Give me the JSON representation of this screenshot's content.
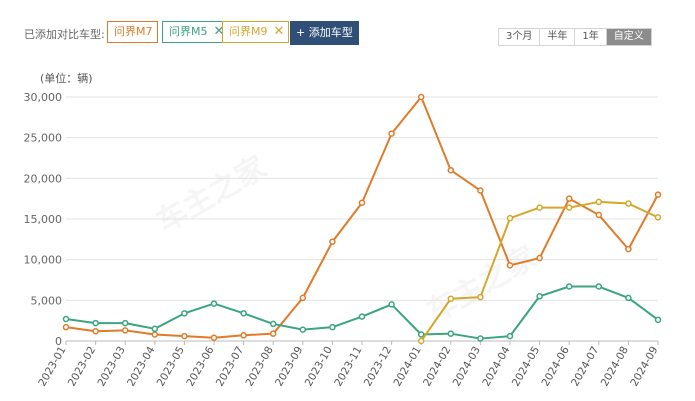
{
  "toolbar": {
    "added_label": "已添加对比车型:",
    "add_button": "+ 添加车型",
    "models": [
      {
        "label": "问界M7",
        "color": "#e07b2a",
        "remove_icon": "close-icon"
      },
      {
        "label": "问界M5",
        "color": "#3aa57f",
        "remove_icon": "close-icon"
      },
      {
        "label": "问界M9",
        "color": "#d4a72c",
        "remove_icon": "close-icon"
      }
    ],
    "ranges": [
      "3个月",
      "半年",
      "1年",
      "自定义"
    ],
    "active_range": "自定义"
  },
  "unit_label": "(单位：辆)",
  "watermark": "车主之家",
  "chart_data": {
    "type": "line",
    "ylim": [
      0,
      30000
    ],
    "yticks": [
      "0",
      "5,000",
      "10,000",
      "15,000",
      "20,000",
      "25,000",
      "30,000"
    ],
    "grid": true,
    "categories": [
      "2023-01",
      "2023-02",
      "2023-03",
      "2023-04",
      "2023-05",
      "2023-06",
      "2023-07",
      "2023-08",
      "2023-09",
      "2023-10",
      "2023-11",
      "2023-12",
      "2024-01",
      "2024-02",
      "2024-03",
      "2024-04",
      "2024-05",
      "2024-06",
      "2024-07",
      "2024-08",
      "2024-09"
    ],
    "series": [
      {
        "name": "问界M7",
        "color": "#e07b2a",
        "values": [
          1700,
          1200,
          1300,
          800,
          600,
          400,
          700,
          900,
          5300,
          12200,
          17000,
          25500,
          30000,
          21000,
          18500,
          9300,
          10200,
          17500,
          15500,
          11300,
          18000
        ]
      },
      {
        "name": "问界M5",
        "color": "#3aa57f",
        "values": [
          2700,
          2200,
          2200,
          1500,
          3400,
          4600,
          3400,
          2100,
          1400,
          1700,
          3000,
          4500,
          800,
          900,
          300,
          600,
          5500,
          6700,
          6700,
          5300,
          2600
        ]
      },
      {
        "name": "问界M9",
        "color": "#d4a72c",
        "values": [
          null,
          null,
          null,
          null,
          null,
          null,
          null,
          null,
          null,
          null,
          null,
          null,
          0,
          5200,
          5400,
          15100,
          16400,
          16400,
          17100,
          16900,
          15200
        ]
      }
    ]
  }
}
